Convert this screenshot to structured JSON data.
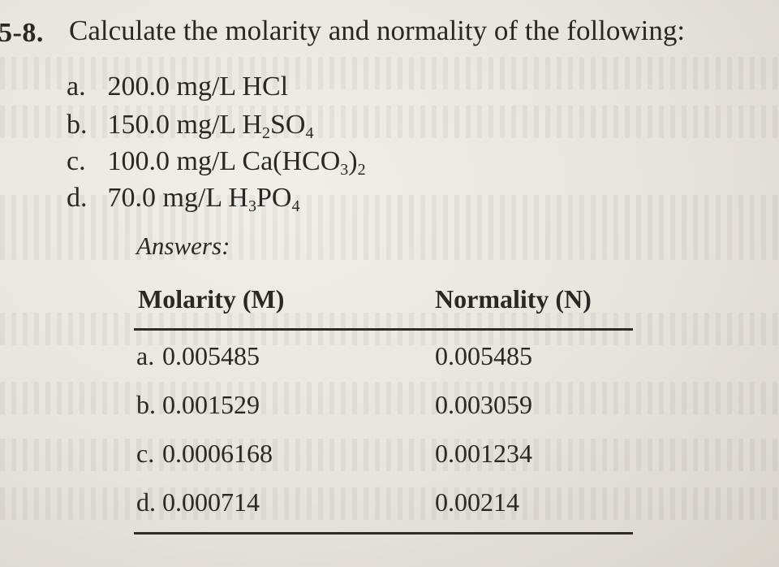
{
  "problem": {
    "number": "5-8.",
    "prompt": "Calculate the molarity and normality of the following:"
  },
  "items": [
    {
      "letter": "a.",
      "amount": "200.0 mg/L",
      "formula": [
        {
          "t": "HCl"
        }
      ]
    },
    {
      "letter": "b.",
      "amount": "150.0 mg/L",
      "formula": [
        {
          "t": "H"
        },
        {
          "sub": "2"
        },
        {
          "t": "SO"
        },
        {
          "sub": "4"
        }
      ]
    },
    {
      "letter": "c.",
      "amount": "100.0 mg/L",
      "formula": [
        {
          "t": "Ca(HCO"
        },
        {
          "sub": "3"
        },
        {
          "t": ")"
        },
        {
          "sub": "2"
        }
      ]
    },
    {
      "letter": "d.",
      "amount": "70.0 mg/L",
      "formula": [
        {
          "t": "H"
        },
        {
          "sub": "3"
        },
        {
          "t": "PO"
        },
        {
          "sub": "4"
        }
      ]
    }
  ],
  "answers": {
    "label": "Answers:",
    "headers": {
      "molarity": "Molarity (M)",
      "normality": "Normality (N)"
    },
    "rows": [
      {
        "letter": "a.",
        "molarity": "0.005485",
        "normality": "0.005485"
      },
      {
        "letter": "b.",
        "molarity": "0.001529",
        "normality": "0.003059"
      },
      {
        "letter": "c.",
        "molarity": "0.0006168",
        "normality": "0.001234"
      },
      {
        "letter": "d.",
        "molarity": "0.000714",
        "normality": "0.00214"
      }
    ]
  }
}
